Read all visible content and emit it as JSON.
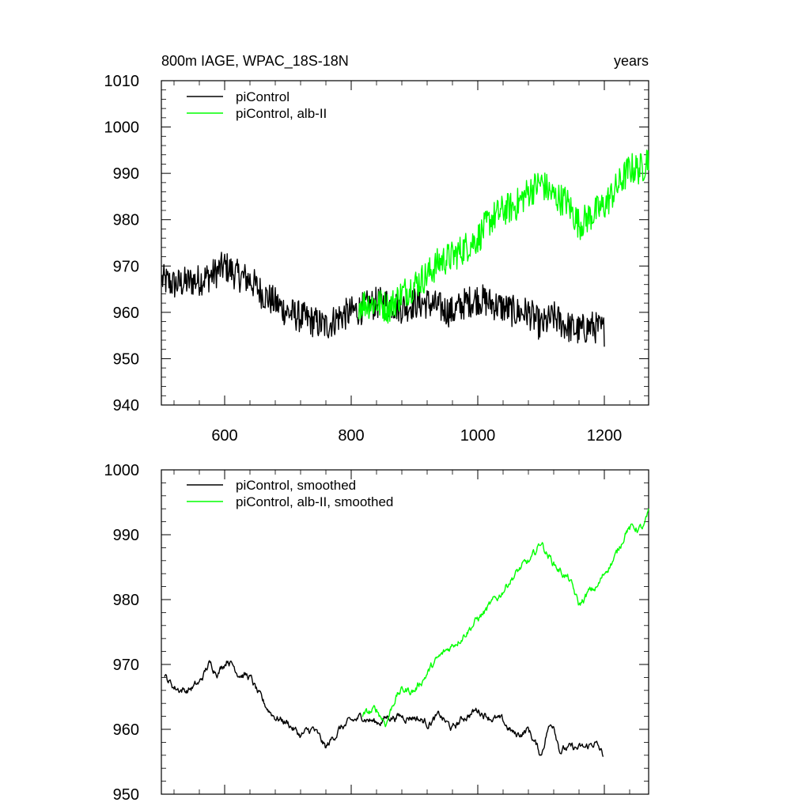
{
  "chart_data": [
    {
      "type": "line",
      "title": "800m IAGE, WPAC_18S-18N",
      "title_right": "years",
      "xlim": [
        500,
        1270
      ],
      "ylim": [
        940,
        1010
      ],
      "x_ticks": [
        600,
        800,
        1000,
        1200
      ],
      "x_tick_labels": [
        "600",
        "800",
        "1000",
        "1200"
      ],
      "y_ticks": [
        940,
        950,
        960,
        970,
        980,
        990,
        1000,
        1010
      ],
      "y_tick_labels": [
        "940",
        "950",
        "960",
        "970",
        "980",
        "990",
        "1000",
        "1010"
      ],
      "legend_position": "top-left",
      "series": [
        {
          "name": "piControl",
          "color": "#000000",
          "x_range": [
            501,
            1200
          ],
          "anchors": [
            [
              501,
              967
            ],
            [
              520,
              966
            ],
            [
              560,
              967
            ],
            [
              580,
              968
            ],
            [
              600,
              970
            ],
            [
              620,
              968
            ],
            [
              640,
              967
            ],
            [
              660,
              964
            ],
            [
              680,
              962
            ],
            [
              700,
              960
            ],
            [
              720,
              959
            ],
            [
              740,
              958
            ],
            [
              760,
              957
            ],
            [
              780,
              959
            ],
            [
              800,
              960
            ],
            [
              820,
              961
            ],
            [
              840,
              962
            ],
            [
              860,
              962
            ],
            [
              880,
              961
            ],
            [
              900,
              962
            ],
            [
              920,
              962
            ],
            [
              940,
              961
            ],
            [
              960,
              960
            ],
            [
              980,
              962
            ],
            [
              1000,
              963
            ],
            [
              1020,
              962
            ],
            [
              1040,
              961
            ],
            [
              1060,
              960
            ],
            [
              1080,
              960
            ],
            [
              1100,
              957
            ],
            [
              1120,
              959
            ],
            [
              1140,
              957
            ],
            [
              1160,
              956
            ],
            [
              1180,
              957
            ],
            [
              1200,
              956
            ]
          ],
          "noise": 3.5
        },
        {
          "name": "piControl, alb-II",
          "color": "#00ff00",
          "x_range": [
            812,
            1270
          ],
          "anchors": [
            [
              812,
              962
            ],
            [
              840,
              962
            ],
            [
              860,
              961
            ],
            [
              880,
              964
            ],
            [
              900,
              966
            ],
            [
              920,
              968
            ],
            [
              940,
              971
            ],
            [
              960,
              972
            ],
            [
              980,
              974
            ],
            [
              1000,
              976
            ],
            [
              1020,
              980
            ],
            [
              1040,
              982
            ],
            [
              1060,
              983
            ],
            [
              1080,
              986
            ],
            [
              1100,
              988
            ],
            [
              1120,
              985
            ],
            [
              1140,
              984
            ],
            [
              1160,
              979
            ],
            [
              1180,
              981
            ],
            [
              1200,
              983
            ],
            [
              1220,
              987
            ],
            [
              1240,
              991
            ],
            [
              1260,
              991
            ],
            [
              1270,
              994
            ]
          ],
          "noise": 3.5
        }
      ]
    },
    {
      "type": "line",
      "xlim": [
        500,
        1270
      ],
      "ylim": [
        950,
        1000
      ],
      "x_ticks": [
        600,
        800,
        1000,
        1200
      ],
      "y_ticks": [
        950,
        960,
        970,
        980,
        990,
        1000
      ],
      "y_tick_labels": [
        "950",
        "960",
        "970",
        "980",
        "990",
        "1000"
      ],
      "legend_position": "top-left",
      "series": [
        {
          "name": "piControl, smoothed",
          "color": "#000000",
          "x_range": [
            505,
            1198
          ],
          "anchors": [
            [
              505,
              968
            ],
            [
              520,
              966.5
            ],
            [
              540,
              966
            ],
            [
              560,
              967
            ],
            [
              575,
              970
            ],
            [
              590,
              969
            ],
            [
              605,
              971
            ],
            [
              620,
              969
            ],
            [
              640,
              968
            ],
            [
              660,
              964
            ],
            [
              680,
              962
            ],
            [
              700,
              961
            ],
            [
              720,
              959
            ],
            [
              740,
              960
            ],
            [
              760,
              957
            ],
            [
              780,
              960
            ],
            [
              800,
              961
            ],
            [
              820,
              962
            ],
            [
              840,
              961
            ],
            [
              860,
              962
            ],
            [
              880,
              962
            ],
            [
              900,
              962
            ],
            [
              920,
              961
            ],
            [
              940,
              962
            ],
            [
              960,
              960
            ],
            [
              980,
              962
            ],
            [
              1000,
              963
            ],
            [
              1020,
              962
            ],
            [
              1040,
              961
            ],
            [
              1060,
              959
            ],
            [
              1080,
              960
            ],
            [
              1100,
              956
            ],
            [
              1110,
              960
            ],
            [
              1120,
              961
            ],
            [
              1130,
              957
            ],
            [
              1150,
              957
            ],
            [
              1170,
              957
            ],
            [
              1185,
              958
            ],
            [
              1198,
              956
            ]
          ],
          "noise": 0.9
        },
        {
          "name": "piControl, alb-II, smoothed",
          "color": "#00ff00",
          "x_range": [
            818,
            1270
          ],
          "anchors": [
            [
              818,
              962
            ],
            [
              840,
              963
            ],
            [
              855,
              961
            ],
            [
              870,
              965
            ],
            [
              880,
              966
            ],
            [
              900,
              966
            ],
            [
              915,
              968
            ],
            [
              930,
              970
            ],
            [
              950,
              972
            ],
            [
              970,
              974
            ],
            [
              990,
              976
            ],
            [
              1010,
              978
            ],
            [
              1030,
              980
            ],
            [
              1050,
              983
            ],
            [
              1070,
              985
            ],
            [
              1085,
              986
            ],
            [
              1100,
              989
            ],
            [
              1110,
              987
            ],
            [
              1125,
              985
            ],
            [
              1145,
              983
            ],
            [
              1160,
              979
            ],
            [
              1175,
              981
            ],
            [
              1190,
              982
            ],
            [
              1205,
              985
            ],
            [
              1220,
              987
            ],
            [
              1235,
              991
            ],
            [
              1250,
              991
            ],
            [
              1262,
              991
            ],
            [
              1270,
              993
            ]
          ],
          "noise": 0.9
        }
      ]
    }
  ]
}
